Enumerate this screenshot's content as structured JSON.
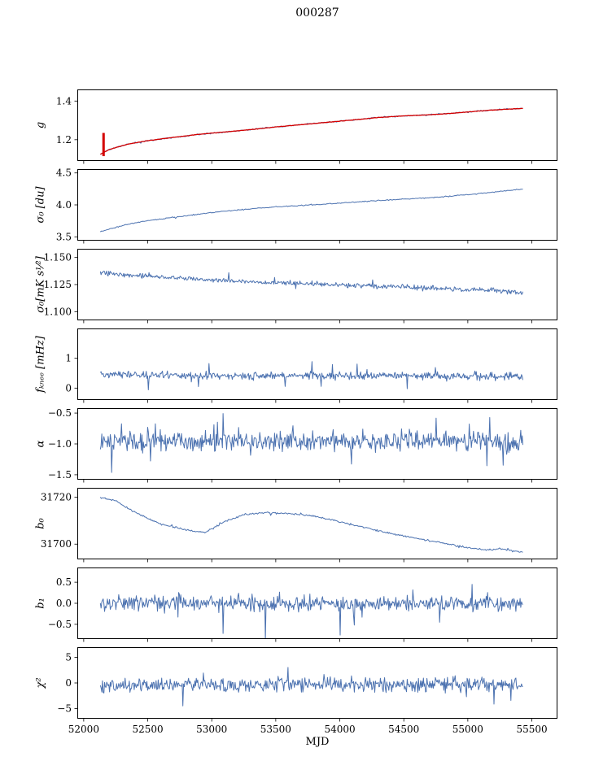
{
  "title": "000287",
  "xlabel": "MJD",
  "xlim": [
    51950,
    55700
  ],
  "x_ticks": {
    "values": [
      52000,
      52500,
      53000,
      53500,
      54000,
      54500,
      55000,
      55500
    ],
    "labels": [
      "52000",
      "52500",
      "53000",
      "53500",
      "54000",
      "54500",
      "55000",
      "55500"
    ]
  },
  "colors": {
    "line": "#4c72b0",
    "fit": "#d40000",
    "axis": "#000000"
  },
  "chart_data": [
    {
      "type": "line",
      "ylabel": "g",
      "ylim": [
        1.09,
        1.46
      ],
      "yticks": {
        "values": [
          1.2,
          1.4
        ],
        "labels": [
          "1.2",
          "1.4"
        ]
      },
      "series": [
        {
          "name": "gain",
          "color": "#4c72b0",
          "width": 1,
          "trend_x": [
            52130,
            52200,
            52350,
            52500,
            52700,
            52900,
            53100,
            53300,
            53500,
            53700,
            53900,
            54100,
            54300,
            54500,
            54700,
            54900,
            55100,
            55250,
            55430
          ],
          "trend_y": [
            1.125,
            1.15,
            1.178,
            1.195,
            1.212,
            1.228,
            1.24,
            1.252,
            1.266,
            1.278,
            1.29,
            1.302,
            1.315,
            1.323,
            1.329,
            1.338,
            1.349,
            1.356,
            1.362
          ],
          "noise": 0.0025,
          "n": 450,
          "seed": 11,
          "spike_prob": 0.01,
          "spike_mult": 2
        },
        {
          "name": "gain-fit",
          "color": "#d40000",
          "width": 1.3,
          "trend_x": [
            52130,
            52200,
            52350,
            52500,
            52700,
            52900,
            53100,
            53300,
            53500,
            53700,
            53900,
            54100,
            54300,
            54500,
            54700,
            54900,
            55100,
            55250,
            55430
          ],
          "trend_y": [
            1.125,
            1.15,
            1.178,
            1.195,
            1.212,
            1.228,
            1.24,
            1.252,
            1.266,
            1.278,
            1.29,
            1.302,
            1.315,
            1.323,
            1.329,
            1.338,
            1.349,
            1.356,
            1.362
          ],
          "noise": 0.0008,
          "n": 450,
          "seed": 12,
          "spike_prob": 0,
          "spike_mult": 1
        }
      ],
      "vlines": [
        {
          "x": 52155,
          "y0": 1.115,
          "y1": 1.235,
          "color": "#d40000",
          "width": 3
        }
      ]
    },
    {
      "type": "line",
      "ylabel": "σ₀ [du]",
      "ylim": [
        3.44,
        4.56
      ],
      "yticks": {
        "values": [
          3.5,
          4.0,
          4.5
        ],
        "labels": [
          "3.5",
          "4.0",
          "4.5"
        ]
      },
      "series": [
        {
          "name": "sigma0-du",
          "color": "#4c72b0",
          "width": 1,
          "trend_x": [
            52130,
            52250,
            52400,
            52600,
            52800,
            53000,
            53200,
            53500,
            53800,
            54100,
            54400,
            54700,
            55000,
            55200,
            55430
          ],
          "trend_y": [
            3.58,
            3.65,
            3.72,
            3.78,
            3.83,
            3.88,
            3.92,
            3.97,
            4.0,
            4.04,
            4.08,
            4.11,
            4.16,
            4.2,
            4.25
          ],
          "noise": 0.006,
          "n": 400,
          "seed": 21,
          "spike_prob": 0.01,
          "spike_mult": 2
        }
      ],
      "vlines": []
    },
    {
      "type": "line",
      "ylabel": "σ₀[mK s¹⁄²]",
      "ylim": [
        1.092,
        1.158
      ],
      "yticks": {
        "values": [
          1.1,
          1.125,
          1.15
        ],
        "labels": [
          "1.100",
          "1.125",
          "1.150"
        ]
      },
      "series": [
        {
          "name": "sigma0-mks",
          "color": "#4c72b0",
          "width": 1,
          "trend_x": [
            52130,
            52300,
            52500,
            52800,
            53100,
            53400,
            53700,
            54000,
            54300,
            54600,
            54900,
            55100,
            55430
          ],
          "trend_y": [
            1.1355,
            1.1345,
            1.133,
            1.1305,
            1.1285,
            1.127,
            1.1262,
            1.1245,
            1.1232,
            1.1222,
            1.121,
            1.1205,
            1.1172
          ],
          "noise": 0.0016,
          "n": 600,
          "seed": 31,
          "spike_prob": 0.02,
          "spike_mult": 2
        }
      ],
      "vlines": []
    },
    {
      "type": "line",
      "ylabel": "fₖₙₑₑ [mHz]",
      "ylim": [
        -0.4,
        2.0
      ],
      "yticks": {
        "values": [
          0,
          1
        ],
        "labels": [
          "0",
          "1"
        ]
      },
      "series": [
        {
          "name": "fknee",
          "color": "#4c72b0",
          "width": 1,
          "trend_x": [
            52130,
            53000,
            54000,
            55430
          ],
          "trend_y": [
            0.45,
            0.41,
            0.42,
            0.4
          ],
          "noise": 0.1,
          "n": 600,
          "seed": 41,
          "spike_prob": 0.03,
          "spike_mult": 2.5
        }
      ],
      "vlines": []
    },
    {
      "type": "line",
      "ylabel": "α",
      "ylim": [
        -1.58,
        -0.42
      ],
      "yticks": {
        "values": [
          -1.5,
          -1.0,
          -0.5
        ],
        "labels": [
          "−1.5",
          "−1.0",
          "−0.5"
        ]
      },
      "series": [
        {
          "name": "alpha",
          "color": "#4c72b0",
          "width": 1,
          "trend_x": [
            52130,
            53500,
            54500,
            55430
          ],
          "trend_y": [
            -0.95,
            -0.96,
            -0.95,
            -0.97
          ],
          "noise": 0.12,
          "n": 600,
          "seed": 51,
          "spike_prob": 0.03,
          "spike_mult": 2
        }
      ],
      "vlines": []
    },
    {
      "type": "line",
      "ylabel": "b₀",
      "ylim": [
        31693.5,
        31724
      ],
      "yticks": {
        "values": [
          31700,
          31720
        ],
        "labels": [
          "31700",
          "31720"
        ]
      },
      "series": [
        {
          "name": "b0",
          "color": "#4c72b0",
          "width": 1,
          "trend_x": [
            52130,
            52250,
            52400,
            52600,
            52800,
            52950,
            53100,
            53250,
            53400,
            53600,
            53800,
            54000,
            54200,
            54400,
            54600,
            54800,
            55000,
            55150,
            55250,
            55350,
            55430
          ],
          "trend_y": [
            31719.8,
            31718.5,
            31713.5,
            31708.5,
            31706.0,
            31705.0,
            31709.5,
            31712.5,
            31713.5,
            31713.0,
            31712.0,
            31709.5,
            31707.0,
            31704.5,
            31702.5,
            31700.5,
            31698.5,
            31697.5,
            31698.0,
            31697.0,
            31696.5
          ],
          "noise": 0.28,
          "n": 450,
          "seed": 61,
          "spike_prob": 0.015,
          "spike_mult": 2
        }
      ],
      "vlines": []
    },
    {
      "type": "line",
      "ylabel": "b₁",
      "ylim": [
        -0.85,
        0.85
      ],
      "yticks": {
        "values": [
          -0.5,
          0.0,
          0.5
        ],
        "labels": [
          "−0.5",
          "0.0",
          "0.5"
        ]
      },
      "series": [
        {
          "name": "b1",
          "color": "#4c72b0",
          "width": 1,
          "trend_x": [
            52130,
            53000,
            54000,
            55430
          ],
          "trend_y": [
            0.0,
            0.02,
            -0.02,
            0.0
          ],
          "noise": 0.13,
          "n": 600,
          "seed": 71,
          "spike_prob": 0.035,
          "spike_mult": 2.8
        }
      ],
      "vlines": []
    },
    {
      "type": "line",
      "ylabel": "χ²",
      "ylim": [
        -7,
        7
      ],
      "yticks": {
        "values": [
          -5,
          0,
          5
        ],
        "labels": [
          "−5",
          "0",
          "5"
        ]
      },
      "series": [
        {
          "name": "chi2",
          "color": "#4c72b0",
          "width": 1,
          "trend_x": [
            52130,
            53500,
            54500,
            55430
          ],
          "trend_y": [
            -0.5,
            -0.3,
            -0.4,
            -0.3
          ],
          "noise": 1.0,
          "n": 600,
          "seed": 81,
          "spike_prob": 0.03,
          "spike_mult": 2.2
        }
      ],
      "vlines": []
    }
  ]
}
